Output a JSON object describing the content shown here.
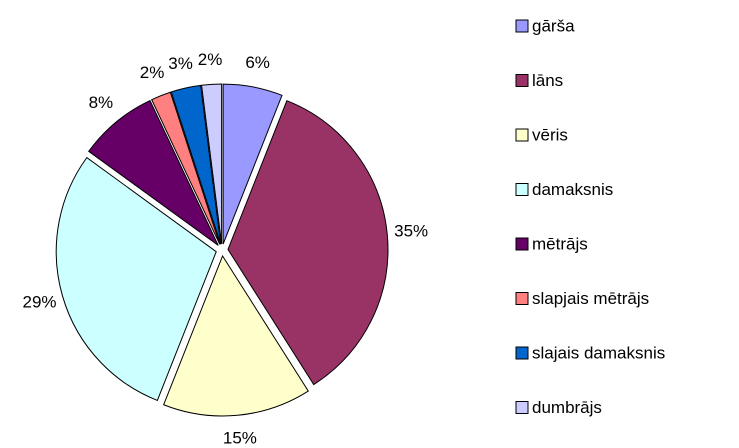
{
  "chart_data": {
    "type": "pie",
    "categories": [
      "gārša",
      "lāns",
      "vēris",
      "damaksnis",
      "mētrājs",
      "slapjais mētrājs",
      "slajais damaksnis",
      "dumbrājs"
    ],
    "values": [
      6,
      35,
      15,
      29,
      8,
      2,
      3,
      2
    ],
    "value_labels": [
      "6%",
      "35%",
      "15%",
      "29%",
      "8%",
      "2%",
      "3%",
      "2%"
    ],
    "colors": [
      "#9999ff",
      "#993366",
      "#ffffcc",
      "#ccffff",
      "#660066",
      "#ff8080",
      "#0066cc",
      "#ccccff"
    ],
    "legend": "right"
  }
}
